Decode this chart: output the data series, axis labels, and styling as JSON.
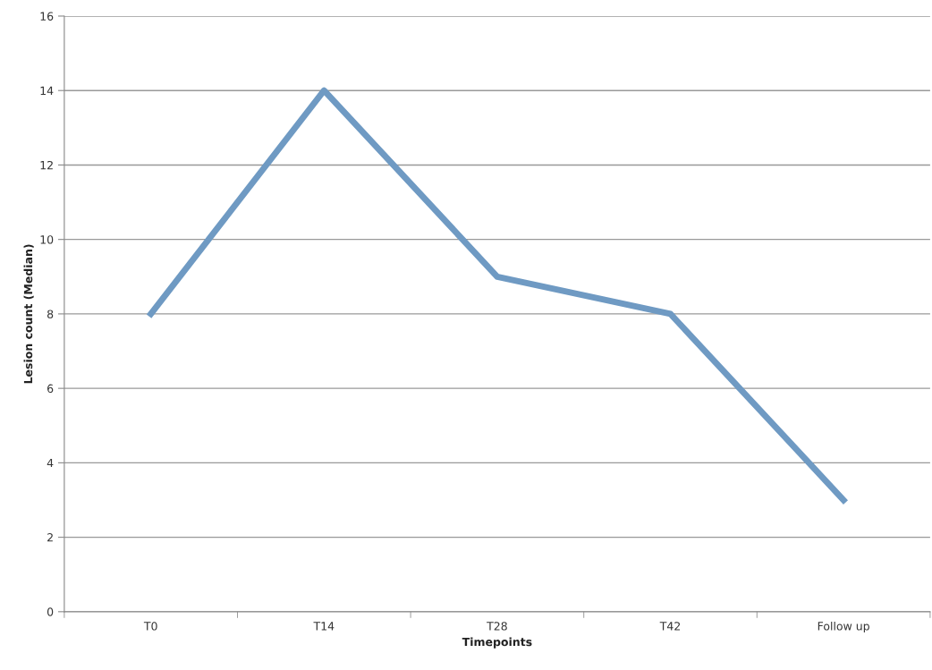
{
  "chart_data": {
    "type": "line",
    "xlabel": "Timepoints",
    "ylabel": "Lesion count (Median)",
    "categories": [
      "T0",
      "T14",
      "T28",
      "T42",
      "Follow up"
    ],
    "series": [
      {
        "color": "#6f9ac3",
        "values": [
          8,
          14,
          9,
          8,
          3
        ]
      }
    ],
    "ylim": [
      0,
      16
    ],
    "yticks": [
      0,
      2,
      4,
      6,
      8,
      10,
      12,
      14,
      16
    ],
    "grid": "y",
    "legend": false,
    "marker": "none",
    "line_style": "solid"
  }
}
